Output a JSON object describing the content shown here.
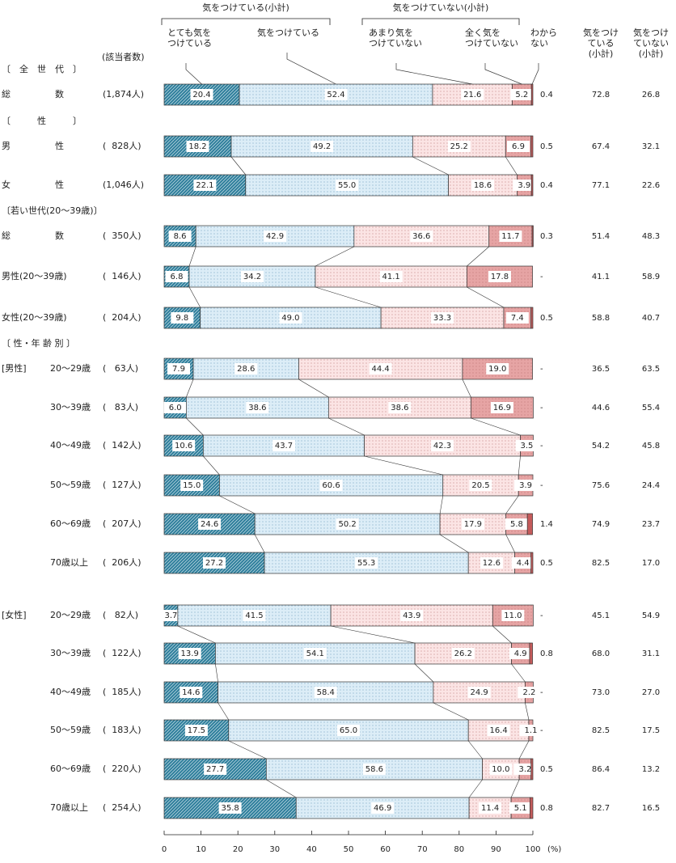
{
  "chart_data": {
    "type": "bar",
    "orientation": "horizontal",
    "stacked": true,
    "brace_labels": [
      "気をつけている(小計)",
      "気をつけていない(小計)"
    ],
    "count_header": "(該当者数)",
    "section_headers": [
      "〔　全　世　代　〕",
      "〔　　　性　　　〕",
      "〔若い世代(20～39歳)〕",
      "〔 性・年 齢 別 〕"
    ],
    "subgroup_labels": [
      "[男性]",
      "[女性]"
    ],
    "categories": [
      "総　　　　　数",
      "男　　　　　性",
      "女　　　　　性",
      "総　　　　　数",
      "男性(20～39歳)",
      "女性(20～39歳)",
      "20～29歳",
      "30～39歳",
      "40～49歳",
      "50～59歳",
      "60～69歳",
      "70歳以上",
      "20～29歳",
      "30～39歳",
      "40～49歳",
      "50～59歳",
      "60～69歳",
      "70歳以上"
    ],
    "counts": [
      "(1,874人)",
      "(  828人)",
      "(1,046人)",
      "(  350人)",
      "(  146人)",
      "(  204人)",
      "(   63人)",
      "(   83人)",
      "(  142人)",
      "(  127人)",
      "(  207人)",
      "(  206人)",
      "(   82人)",
      "(  122人)",
      "(  185人)",
      "(  183人)",
      "(  220人)",
      "(  254人)"
    ],
    "series": [
      {
        "name": "とても気を\nつけている",
        "color": "#2f7f9c",
        "values": [
          20.4,
          18.2,
          22.1,
          8.6,
          6.8,
          9.8,
          7.9,
          6.0,
          10.6,
          15.0,
          24.6,
          27.2,
          3.7,
          13.9,
          14.6,
          17.5,
          27.7,
          35.8
        ],
        "value_labels": [
          "20.4",
          "18.2",
          "22.1",
          "8.6",
          "6.8",
          "9.8",
          "7.9",
          "6.0",
          "10.6",
          "15.0",
          "24.6",
          "27.2",
          "3.7",
          "13.9",
          "14.6",
          "17.5",
          "27.7",
          "35.8"
        ]
      },
      {
        "name": "気をつけている",
        "color": "#dcedf7",
        "values": [
          52.4,
          49.2,
          55.0,
          42.9,
          34.2,
          49.0,
          28.6,
          38.6,
          43.7,
          60.6,
          50.2,
          55.3,
          41.5,
          54.1,
          58.4,
          65.0,
          58.6,
          46.9
        ],
        "value_labels": [
          "52.4",
          "49.2",
          "55.0",
          "42.9",
          "34.2",
          "49.0",
          "28.6",
          "38.6",
          "43.7",
          "60.6",
          "50.2",
          "55.3",
          "41.5",
          "54.1",
          "58.4",
          "65.0",
          "58.6",
          "46.9"
        ]
      },
      {
        "name": "あまり気を\nつけていない",
        "color": "#fbe4e4",
        "values": [
          21.6,
          25.2,
          18.6,
          36.6,
          41.1,
          33.3,
          44.4,
          38.6,
          42.3,
          20.5,
          17.9,
          12.6,
          43.9,
          26.2,
          24.9,
          16.4,
          10.0,
          11.4
        ],
        "value_labels": [
          "21.6",
          "25.2",
          "18.6",
          "36.6",
          "41.1",
          "33.3",
          "44.4",
          "38.6",
          "42.3",
          "20.5",
          "17.9",
          "12.6",
          "43.9",
          "26.2",
          "24.9",
          "16.4",
          "10.0",
          "11.4"
        ]
      },
      {
        "name": "全く気を\nつけていない",
        "color": "#e6a4a4",
        "values": [
          5.2,
          6.9,
          3.9,
          11.7,
          17.8,
          7.4,
          19.0,
          16.9,
          3.5,
          3.9,
          5.8,
          4.4,
          11.0,
          4.9,
          2.2,
          1.1,
          3.2,
          5.1
        ],
        "value_labels": [
          "5.2",
          "6.9",
          "3.9",
          "11.7",
          "17.8",
          "7.4",
          "19.0",
          "16.9",
          "3.5",
          "3.9",
          "5.8",
          "4.4",
          "11.0",
          "4.9",
          "2.2",
          "1.1",
          "3.2",
          "5.1"
        ]
      },
      {
        "name": "わから\nない",
        "color": "#c65a5a",
        "values": [
          0.4,
          0.5,
          0.4,
          0.3,
          null,
          0.5,
          null,
          null,
          null,
          null,
          1.4,
          0.5,
          null,
          0.8,
          null,
          null,
          0.5,
          0.8
        ],
        "value_labels": [
          "0.4",
          "0.5",
          "0.4",
          "0.3",
          "-",
          "0.5",
          "-",
          "-",
          "-",
          "-",
          "1.4",
          "0.5",
          "-",
          "0.8",
          "-",
          "-",
          "0.5",
          "0.8"
        ]
      }
    ],
    "subtotals": [
      {
        "name": "気をつけ\nている\n(小計)",
        "values": [
          72.8,
          67.4,
          77.1,
          51.4,
          41.1,
          58.8,
          36.5,
          44.6,
          54.2,
          75.6,
          74.9,
          82.5,
          45.1,
          68.0,
          73.0,
          82.5,
          86.4,
          82.7
        ],
        "value_labels": [
          "72.8",
          "67.4",
          "77.1",
          "51.4",
          "41.1",
          "58.8",
          "36.5",
          "44.6",
          "54.2",
          "75.6",
          "74.9",
          "82.5",
          "45.1",
          "68.0",
          "73.0",
          "82.5",
          "86.4",
          "82.7"
        ]
      },
      {
        "name": "気をつけ\nていない\n(小計)",
        "values": [
          26.8,
          32.1,
          22.6,
          48.3,
          58.9,
          40.7,
          63.5,
          55.4,
          45.8,
          24.4,
          23.7,
          17.0,
          54.9,
          31.1,
          27.0,
          17.5,
          13.2,
          16.5
        ],
        "value_labels": [
          "26.8",
          "32.1",
          "22.6",
          "48.3",
          "58.9",
          "40.7",
          "63.5",
          "55.4",
          "45.8",
          "24.4",
          "23.7",
          "17.0",
          "54.9",
          "31.1",
          "27.0",
          "17.5",
          "13.2",
          "16.5"
        ]
      }
    ],
    "xlim": [
      0,
      100
    ],
    "xticks": [
      0,
      10,
      20,
      30,
      40,
      50,
      60,
      70,
      80,
      90,
      100
    ],
    "x_unit": "(%)"
  }
}
